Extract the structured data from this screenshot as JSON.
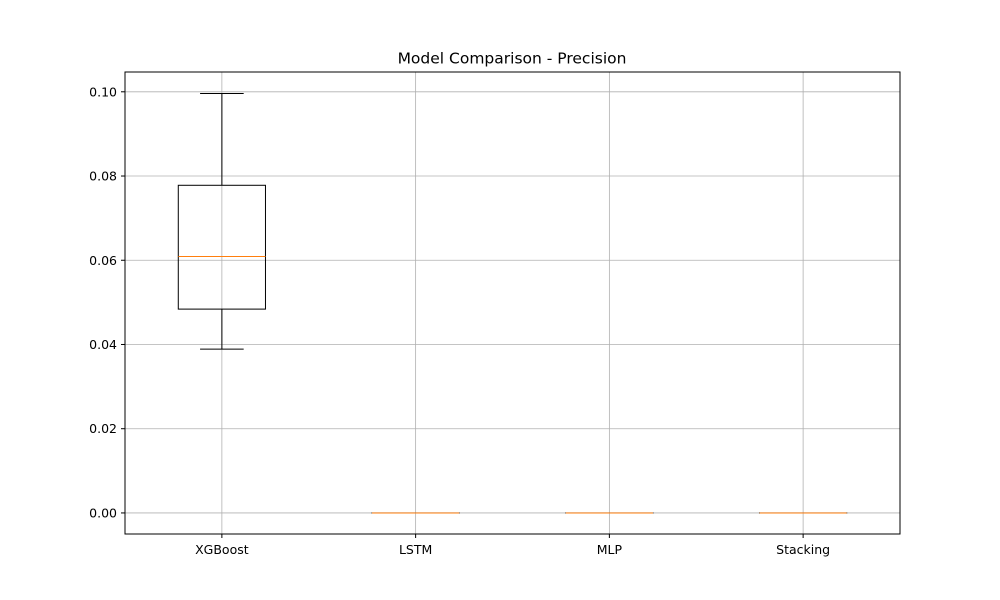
{
  "chart_data": {
    "type": "box",
    "title": "Model Comparison - Precision",
    "xlabel": "",
    "ylabel": "",
    "categories": [
      "XGBoost",
      "LSTM",
      "MLP",
      "Stacking"
    ],
    "boxes": [
      {
        "name": "XGBoost",
        "min": 0.0389,
        "q1": 0.0484,
        "median": 0.0609,
        "q3": 0.0778,
        "max": 0.0996
      },
      {
        "name": "LSTM",
        "min": 0.0,
        "q1": 0.0,
        "median": 0.0,
        "q3": 0.0,
        "max": 0.0
      },
      {
        "name": "MLP",
        "min": 0.0,
        "q1": 0.0,
        "median": 0.0,
        "q3": 0.0,
        "max": 0.0
      },
      {
        "name": "Stacking",
        "min": 0.0,
        "q1": 0.0,
        "median": 0.0,
        "q3": 0.0,
        "max": 0.0
      }
    ],
    "ylim": [
      -0.005,
      0.1047
    ],
    "yticks": [
      0.0,
      0.02,
      0.04,
      0.06,
      0.08,
      0.1
    ],
    "ytick_labels": [
      "0.00",
      "0.02",
      "0.04",
      "0.06",
      "0.08",
      "0.10"
    ],
    "grid": true,
    "colors": {
      "box": "#000000",
      "median": "#ff7f0e",
      "grid": "#b0b0b0"
    }
  }
}
